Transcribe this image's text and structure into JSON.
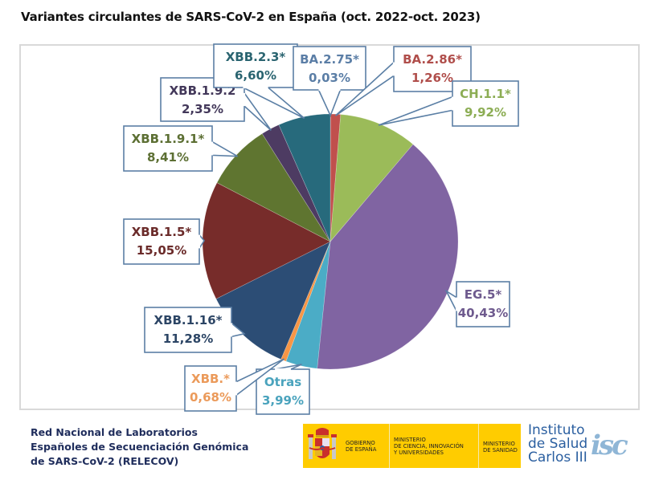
{
  "chart_data": {
    "type": "pie",
    "title": "Variantes circulantes de SARS-CoV-2 en España (oct. 2022-oct. 2023)",
    "start": "12 o'clock",
    "direction": "clockwise",
    "unit": "%",
    "slices": [
      {
        "name": "BA.2.75*",
        "label": "BA.2.75*",
        "value": 0.03,
        "display": "0,03%",
        "color": "#8064a2",
        "text_color": "#5b7ea6"
      },
      {
        "name": "BA.2.86*",
        "label": "BA.2.86*",
        "value": 1.26,
        "display": "1,26%",
        "color": "#c0504d",
        "text_color": "#b04e4b"
      },
      {
        "name": "CH.1.1*",
        "label": "CH.1.1*",
        "value": 9.92,
        "display": "9,92%",
        "color": "#9bbb59",
        "text_color": "#8cad54"
      },
      {
        "name": "EG.5*",
        "label": "EG.5*",
        "value": 40.43,
        "display": "40,43%",
        "color": "#8064a2",
        "text_color": "#6e5a8e"
      },
      {
        "name": "Otras",
        "label": "Otras",
        "value": 3.99,
        "display": "3,99%",
        "color": "#4bacc6",
        "text_color": "#4aa3bd"
      },
      {
        "name": "XBB.*",
        "label": "XBB.*",
        "value": 0.68,
        "display": "0,68%",
        "color": "#f79646",
        "text_color": "#eb9a5a"
      },
      {
        "name": "XBB.1.16*",
        "label": "XBB.1.16*",
        "value": 11.28,
        "display": "11,28%",
        "color": "#2c4d75",
        "text_color": "#2c4565"
      },
      {
        "name": "XBB.1.5*",
        "label": "XBB.1.5*",
        "value": 15.05,
        "display": "15,05%",
        "color": "#772c2a",
        "text_color": "#6b2b2a"
      },
      {
        "name": "XBB.1.9.1*",
        "label": "XBB.1.9.1*",
        "value": 8.41,
        "display": "8,41%",
        "color": "#5f7530",
        "text_color": "#5c6f33"
      },
      {
        "name": "XBB.1.9.2",
        "label": "XBB.1.9.2",
        "value": 2.35,
        "display": "2,35%",
        "color": "#4d3b62",
        "text_color": "#43385a"
      },
      {
        "name": "XBB.2.3*",
        "label": "XBB.2.3*",
        "value": 6.6,
        "display": "6,60%",
        "color": "#276a7c",
        "text_color": "#2a6470"
      }
    ],
    "legend": "none (callout labels)"
  },
  "footer": {
    "network_lines": [
      "Red Nacional de Laboratorios",
      "Españoles de Secuenciación Genómica",
      "de SARS-CoV-2 (RELECOV)"
    ],
    "gov_logo": {
      "emblem": "coat-of-arms-of-spain",
      "gobierno": [
        "GOBIERNO",
        "DE ESPAÑA"
      ],
      "ministerio_ciencia": [
        "MINISTERIO",
        "DE CIENCIA, INNOVACIÓN",
        "Y UNIVERSIDADES"
      ],
      "ministerio_sanidad": [
        "MINISTERIO",
        "DE SANIDAD"
      ]
    },
    "isciii": {
      "lines": [
        "Instituto",
        "de Salud",
        "Carlos III"
      ],
      "mark": "isc"
    }
  },
  "colors": {
    "callout_border": "#5b7fa5",
    "frame_border": "#d9d9d9",
    "gov_yellow": "#ffcc00",
    "footer_text": "#1f2d5c"
  }
}
